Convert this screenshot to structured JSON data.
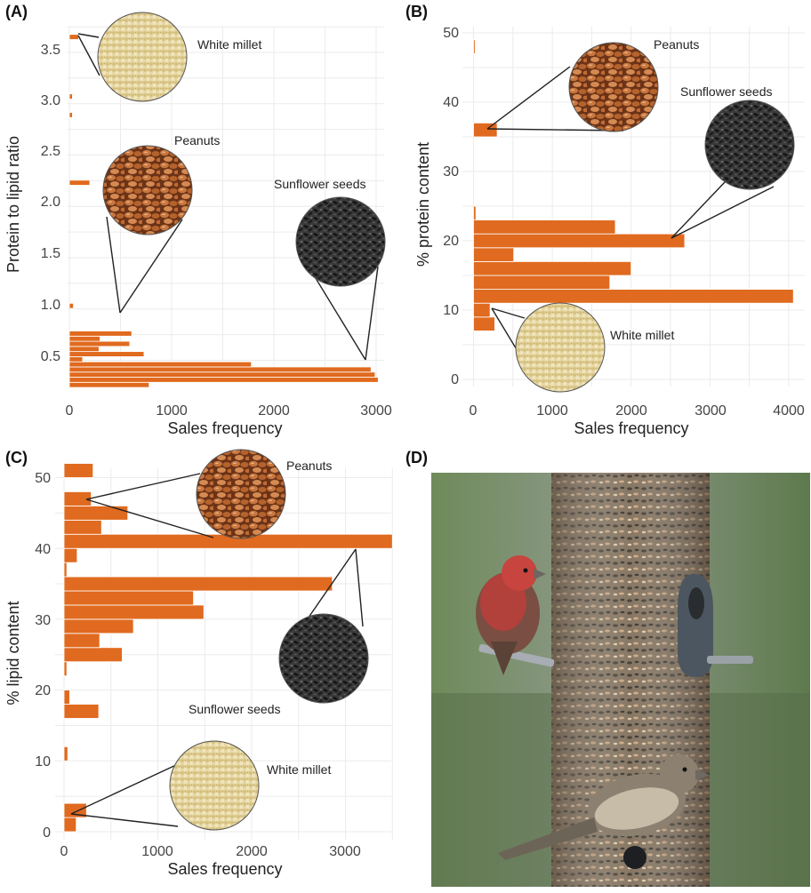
{
  "colors": {
    "bar": "#E06A1F",
    "bar_edge": "#ffffff",
    "grid": "#ebebeb"
  },
  "panels": [
    {
      "id": "A",
      "label": "(A)"
    },
    {
      "id": "B",
      "label": "(B)"
    },
    {
      "id": "C",
      "label": "(C)"
    },
    {
      "id": "D",
      "label": "(D)"
    }
  ],
  "chart_data": [
    {
      "type": "bar",
      "orientation": "horizontal",
      "panel": "(A)",
      "xlabel": "Sales frequency",
      "ylabel": "Protein to lipid ratio",
      "xlim": [
        0,
        3050
      ],
      "ylim": [
        0.2,
        3.75
      ],
      "xticks": [
        "0",
        "1000",
        "2000",
        "3000"
      ],
      "yticks": [
        "0.5",
        "1.0",
        "1.5",
        "2.0",
        "2.5",
        "3.0",
        "3.5"
      ],
      "grid": true,
      "bin_width": 0.05,
      "bins": [
        {
          "y": 0.26,
          "value": 780
        },
        {
          "y": 0.31,
          "value": 3020
        },
        {
          "y": 0.36,
          "value": 2990
        },
        {
          "y": 0.41,
          "value": 2950
        },
        {
          "y": 0.46,
          "value": 1780
        },
        {
          "y": 0.51,
          "value": 130
        },
        {
          "y": 0.56,
          "value": 730
        },
        {
          "y": 0.61,
          "value": 290
        },
        {
          "y": 0.66,
          "value": 590
        },
        {
          "y": 0.71,
          "value": 300
        },
        {
          "y": 0.76,
          "value": 610
        },
        {
          "y": 1.03,
          "value": 40
        },
        {
          "y": 2.23,
          "value": 200
        },
        {
          "y": 2.89,
          "value": 30
        },
        {
          "y": 3.07,
          "value": 30
        },
        {
          "y": 3.65,
          "value": 90
        }
      ],
      "callouts": [
        "White millet",
        "Peanuts",
        "Sunflower seeds"
      ]
    },
    {
      "type": "bar",
      "orientation": "horizontal",
      "panel": "(B)",
      "xlabel": "Sales frequency",
      "ylabel": "% protein content",
      "xlim": [
        -100,
        4200
      ],
      "ylim": [
        -1,
        51
      ],
      "xticks": [
        "0",
        "1000",
        "2000",
        "3000",
        "4000"
      ],
      "yticks": [
        "0",
        "10",
        "20",
        "30",
        "40",
        "50"
      ],
      "grid": true,
      "bin_width": 2,
      "bins": [
        {
          "y": 8,
          "value": 270
        },
        {
          "y": 10,
          "value": 210
        },
        {
          "y": 12,
          "value": 4060
        },
        {
          "y": 14,
          "value": 1730
        },
        {
          "y": 16,
          "value": 2000
        },
        {
          "y": 18,
          "value": 510
        },
        {
          "y": 20,
          "value": 2680
        },
        {
          "y": 22,
          "value": 1800
        },
        {
          "y": 24,
          "value": 30
        },
        {
          "y": 36,
          "value": 300
        },
        {
          "y": 48,
          "value": 20
        }
      ],
      "callouts": [
        "Peanuts",
        "Sunflower seeds",
        "White millet"
      ]
    },
    {
      "type": "bar",
      "orientation": "horizontal",
      "panel": "(C)",
      "xlabel": "Sales frequency",
      "ylabel": "% lipid content",
      "xlim": [
        -20,
        3560
      ],
      "ylim": [
        -0.5,
        52
      ],
      "xticks": [
        "0",
        "1000",
        "2000",
        "3000"
      ],
      "yticks": [
        "0",
        "10",
        "20",
        "30",
        "40",
        "50"
      ],
      "grid": true,
      "bin_width": 2,
      "bins": [
        {
          "y": 1,
          "value": 130
        },
        {
          "y": 3,
          "value": 240
        },
        {
          "y": 11,
          "value": 40
        },
        {
          "y": 17,
          "value": 370
        },
        {
          "y": 19,
          "value": 60
        },
        {
          "y": 23,
          "value": 30
        },
        {
          "y": 25,
          "value": 620
        },
        {
          "y": 27,
          "value": 380
        },
        {
          "y": 29,
          "value": 740
        },
        {
          "y": 31,
          "value": 1490
        },
        {
          "y": 33,
          "value": 1380
        },
        {
          "y": 35,
          "value": 2860
        },
        {
          "y": 37,
          "value": 30
        },
        {
          "y": 39,
          "value": 140
        },
        {
          "y": 41,
          "value": 3500
        },
        {
          "y": 43,
          "value": 400
        },
        {
          "y": 45,
          "value": 680
        },
        {
          "y": 47,
          "value": 290
        },
        {
          "y": 51,
          "value": 310
        }
      ],
      "callouts": [
        "Peanuts",
        "Sunflower seeds",
        "White millet"
      ]
    }
  ],
  "photo": {
    "panel": "(D)",
    "icon": "house-finches-on-seed-feeder-photo"
  }
}
